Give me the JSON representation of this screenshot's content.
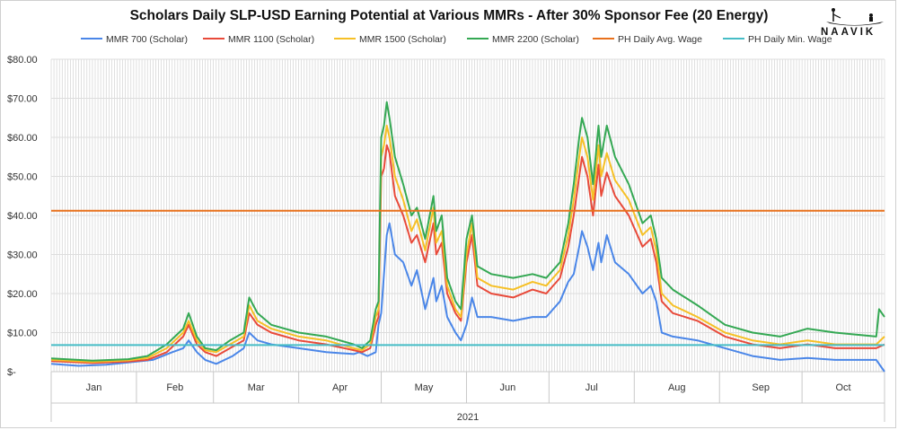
{
  "chart_data": {
    "type": "line",
    "title": "Scholars Daily SLP-USD Earning Potential at Various MMRs - After 30% Sponsor Fee (20 Energy)",
    "logo": "NAAVIK",
    "xlabel": "2021",
    "ylabel": "",
    "y_ticks": [
      "$-",
      "$10.00",
      "$20.00",
      "$30.00",
      "$40.00",
      "$50.00",
      "$60.00",
      "$70.00",
      "$80.00"
    ],
    "ylim": [
      0,
      80
    ],
    "months": [
      "Jan",
      "Feb",
      "Mar",
      "Apr",
      "May",
      "Jun",
      "Jul",
      "Aug",
      "Sep",
      "Oct"
    ],
    "month_days": [
      31,
      28,
      31,
      30,
      31,
      30,
      31,
      31,
      30,
      31
    ],
    "total_days": 304,
    "grid": true,
    "legend_position": "top",
    "series": [
      {
        "name": "MMR 700 (Scholar)",
        "color": "#4a86e8",
        "points": [
          [
            0,
            2
          ],
          [
            10,
            1.5
          ],
          [
            20,
            1.8
          ],
          [
            30,
            2.5
          ],
          [
            37,
            3
          ],
          [
            44,
            5
          ],
          [
            48,
            6
          ],
          [
            50,
            8
          ],
          [
            53,
            5
          ],
          [
            56,
            3
          ],
          [
            60,
            2
          ],
          [
            66,
            4
          ],
          [
            70,
            6
          ],
          [
            72,
            10
          ],
          [
            75,
            8
          ],
          [
            80,
            7
          ],
          [
            90,
            6
          ],
          [
            100,
            5
          ],
          [
            110,
            4.5
          ],
          [
            112,
            5
          ],
          [
            115,
            4
          ],
          [
            118,
            5
          ],
          [
            119,
            12
          ],
          [
            120,
            15
          ],
          [
            121,
            25
          ],
          [
            122,
            35
          ],
          [
            123,
            38
          ],
          [
            125,
            30
          ],
          [
            128,
            28
          ],
          [
            131,
            22
          ],
          [
            133,
            26
          ],
          [
            136,
            16
          ],
          [
            139,
            24
          ],
          [
            140,
            18
          ],
          [
            142,
            22
          ],
          [
            144,
            14
          ],
          [
            147,
            10
          ],
          [
            149,
            8
          ],
          [
            151,
            12
          ],
          [
            153,
            19
          ],
          [
            155,
            14
          ],
          [
            160,
            14
          ],
          [
            168,
            13
          ],
          [
            175,
            14
          ],
          [
            180,
            14
          ],
          [
            185,
            18
          ],
          [
            188,
            23
          ],
          [
            190,
            25
          ],
          [
            192,
            32
          ],
          [
            193,
            36
          ],
          [
            195,
            32
          ],
          [
            197,
            26
          ],
          [
            199,
            33
          ],
          [
            200,
            28
          ],
          [
            202,
            35
          ],
          [
            205,
            28
          ],
          [
            210,
            25
          ],
          [
            215,
            20
          ],
          [
            218,
            22
          ],
          [
            220,
            18
          ],
          [
            222,
            10
          ],
          [
            226,
            9
          ],
          [
            235,
            8
          ],
          [
            245,
            6
          ],
          [
            255,
            4
          ],
          [
            265,
            3
          ],
          [
            275,
            3.5
          ],
          [
            285,
            3
          ],
          [
            300,
            3
          ],
          [
            303,
            0
          ]
        ]
      },
      {
        "name": "MMR 1100 (Scholar)",
        "color": "#e84a3a",
        "points": [
          [
            0,
            2.7
          ],
          [
            15,
            2.2
          ],
          [
            28,
            2.6
          ],
          [
            35,
            3
          ],
          [
            42,
            5
          ],
          [
            48,
            9
          ],
          [
            50,
            12
          ],
          [
            53,
            7
          ],
          [
            56,
            5
          ],
          [
            60,
            4
          ],
          [
            65,
            6
          ],
          [
            70,
            8
          ],
          [
            72,
            15
          ],
          [
            75,
            12
          ],
          [
            80,
            10
          ],
          [
            90,
            8
          ],
          [
            100,
            7
          ],
          [
            110,
            5.5
          ],
          [
            113,
            5
          ],
          [
            116,
            6
          ],
          [
            118,
            12
          ],
          [
            119,
            14
          ],
          [
            120,
            50
          ],
          [
            121,
            52
          ],
          [
            122,
            58
          ],
          [
            123,
            56
          ],
          [
            125,
            45
          ],
          [
            128,
            40
          ],
          [
            131,
            33
          ],
          [
            133,
            35
          ],
          [
            136,
            28
          ],
          [
            139,
            38
          ],
          [
            140,
            30
          ],
          [
            142,
            33
          ],
          [
            144,
            20
          ],
          [
            147,
            15
          ],
          [
            149,
            13
          ],
          [
            151,
            28
          ],
          [
            153,
            35
          ],
          [
            155,
            22
          ],
          [
            160,
            20
          ],
          [
            168,
            19
          ],
          [
            175,
            21
          ],
          [
            180,
            20
          ],
          [
            185,
            24
          ],
          [
            188,
            32
          ],
          [
            190,
            40
          ],
          [
            192,
            50
          ],
          [
            193,
            55
          ],
          [
            195,
            50
          ],
          [
            197,
            40
          ],
          [
            199,
            53
          ],
          [
            200,
            45
          ],
          [
            202,
            51
          ],
          [
            205,
            45
          ],
          [
            210,
            40
          ],
          [
            215,
            32
          ],
          [
            218,
            34
          ],
          [
            220,
            28
          ],
          [
            222,
            18
          ],
          [
            226,
            15
          ],
          [
            235,
            13
          ],
          [
            245,
            9
          ],
          [
            255,
            7
          ],
          [
            265,
            6
          ],
          [
            275,
            7
          ],
          [
            285,
            6
          ],
          [
            300,
            6
          ],
          [
            303,
            7
          ]
        ]
      },
      {
        "name": "MMR 1500 (Scholar)",
        "color": "#f6c026",
        "points": [
          [
            0,
            3
          ],
          [
            15,
            2.5
          ],
          [
            28,
            2.9
          ],
          [
            35,
            3.5
          ],
          [
            42,
            6
          ],
          [
            48,
            10
          ],
          [
            50,
            13
          ],
          [
            53,
            8
          ],
          [
            56,
            5.5
          ],
          [
            60,
            5
          ],
          [
            65,
            7
          ],
          [
            70,
            9
          ],
          [
            72,
            17
          ],
          [
            75,
            13
          ],
          [
            80,
            11
          ],
          [
            90,
            9
          ],
          [
            100,
            8
          ],
          [
            110,
            6
          ],
          [
            113,
            5.5
          ],
          [
            116,
            7
          ],
          [
            118,
            14
          ],
          [
            119,
            16
          ],
          [
            120,
            55
          ],
          [
            121,
            58
          ],
          [
            122,
            63
          ],
          [
            123,
            60
          ],
          [
            125,
            50
          ],
          [
            128,
            44
          ],
          [
            131,
            36
          ],
          [
            133,
            39
          ],
          [
            136,
            31
          ],
          [
            139,
            42
          ],
          [
            140,
            33
          ],
          [
            142,
            36
          ],
          [
            144,
            22
          ],
          [
            147,
            16
          ],
          [
            149,
            14
          ],
          [
            151,
            30
          ],
          [
            153,
            38
          ],
          [
            155,
            24
          ],
          [
            160,
            22
          ],
          [
            168,
            21
          ],
          [
            175,
            23
          ],
          [
            180,
            22
          ],
          [
            185,
            26
          ],
          [
            188,
            35
          ],
          [
            190,
            44
          ],
          [
            192,
            55
          ],
          [
            193,
            60
          ],
          [
            195,
            55
          ],
          [
            197,
            44
          ],
          [
            199,
            58
          ],
          [
            200,
            50
          ],
          [
            202,
            56
          ],
          [
            205,
            49
          ],
          [
            210,
            44
          ],
          [
            215,
            35
          ],
          [
            218,
            37
          ],
          [
            220,
            31
          ],
          [
            222,
            20
          ],
          [
            226,
            17
          ],
          [
            235,
            14
          ],
          [
            245,
            10
          ],
          [
            255,
            8
          ],
          [
            265,
            7
          ],
          [
            275,
            8
          ],
          [
            285,
            7
          ],
          [
            300,
            7
          ],
          [
            303,
            9
          ]
        ]
      },
      {
        "name": "MMR 2200 (Scholar)",
        "color": "#34a853",
        "points": [
          [
            0,
            3.4
          ],
          [
            15,
            2.8
          ],
          [
            28,
            3.2
          ],
          [
            35,
            4
          ],
          [
            42,
            7
          ],
          [
            48,
            11
          ],
          [
            50,
            15
          ],
          [
            53,
            9
          ],
          [
            56,
            6
          ],
          [
            60,
            5.5
          ],
          [
            65,
            8
          ],
          [
            70,
            10
          ],
          [
            72,
            19
          ],
          [
            75,
            15
          ],
          [
            80,
            12
          ],
          [
            90,
            10
          ],
          [
            100,
            9
          ],
          [
            110,
            7
          ],
          [
            113,
            6
          ],
          [
            116,
            8
          ],
          [
            118,
            16
          ],
          [
            119,
            18
          ],
          [
            120,
            60
          ],
          [
            121,
            63
          ],
          [
            122,
            69
          ],
          [
            123,
            65
          ],
          [
            125,
            55
          ],
          [
            128,
            48
          ],
          [
            131,
            40
          ],
          [
            133,
            42
          ],
          [
            136,
            34
          ],
          [
            139,
            45
          ],
          [
            140,
            36
          ],
          [
            142,
            40
          ],
          [
            144,
            24
          ],
          [
            147,
            18
          ],
          [
            149,
            16
          ],
          [
            151,
            34
          ],
          [
            153,
            40
          ],
          [
            155,
            27
          ],
          [
            160,
            25
          ],
          [
            168,
            24
          ],
          [
            175,
            25
          ],
          [
            180,
            24
          ],
          [
            185,
            28
          ],
          [
            188,
            38
          ],
          [
            190,
            48
          ],
          [
            192,
            60
          ],
          [
            193,
            65
          ],
          [
            195,
            60
          ],
          [
            197,
            48
          ],
          [
            199,
            63
          ],
          [
            200,
            55
          ],
          [
            202,
            63
          ],
          [
            205,
            55
          ],
          [
            210,
            48
          ],
          [
            215,
            38
          ],
          [
            218,
            40
          ],
          [
            220,
            34
          ],
          [
            222,
            24
          ],
          [
            226,
            21
          ],
          [
            235,
            17
          ],
          [
            245,
            12
          ],
          [
            255,
            10
          ],
          [
            265,
            9
          ],
          [
            275,
            11
          ],
          [
            285,
            10
          ],
          [
            300,
            9
          ],
          [
            301,
            16
          ],
          [
            303,
            14
          ]
        ]
      },
      {
        "name": "PH Daily Avg. Wage",
        "color": "#e8711c",
        "points": [
          [
            0,
            41.2
          ],
          [
            303,
            41.2
          ]
        ]
      },
      {
        "name": "PH Daily Min. Wage",
        "color": "#46bdc6",
        "points": [
          [
            0,
            6.8
          ],
          [
            303,
            6.8
          ]
        ]
      }
    ]
  }
}
